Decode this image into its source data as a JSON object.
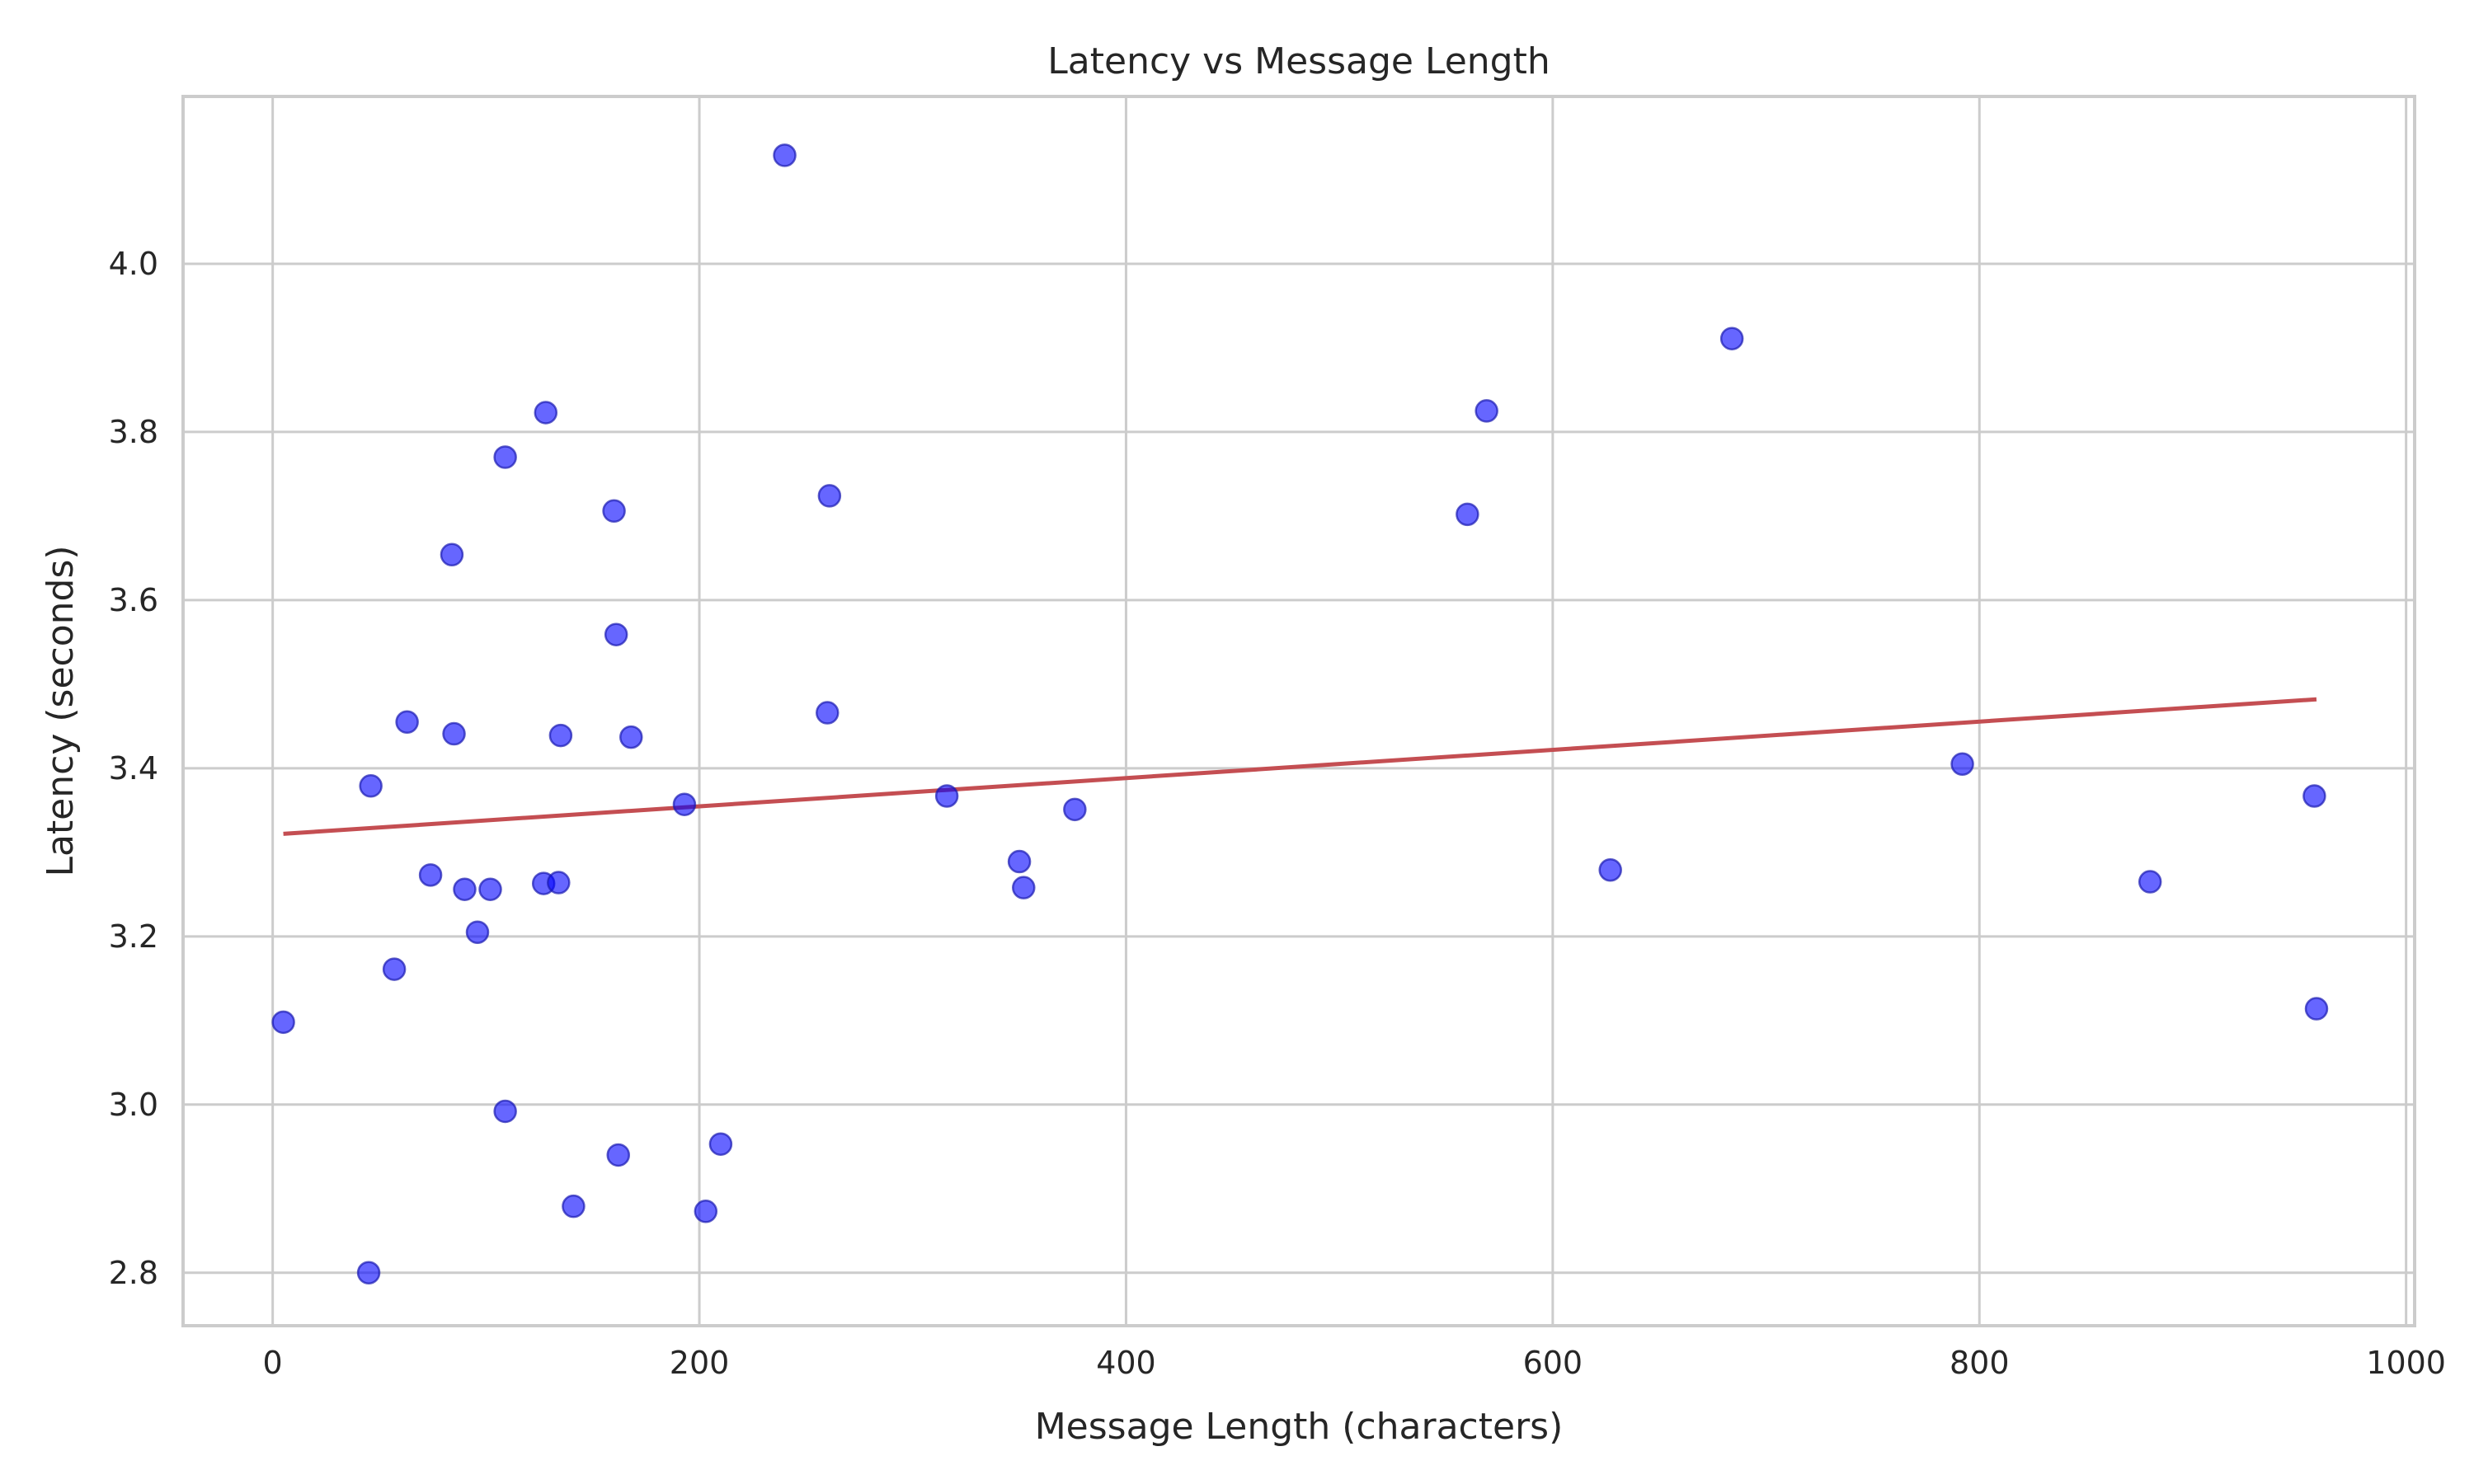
{
  "chart_data": {
    "type": "scatter",
    "title": "Latency vs Message Length",
    "xlabel": "Message Length (characters)",
    "ylabel": "Latency (seconds)",
    "xlim": [
      -42,
      1004
    ],
    "ylim": [
      2.737,
      4.199
    ],
    "x_ticks": [
      0,
      200,
      400,
      600,
      800,
      1000
    ],
    "x_tick_labels": [
      "0",
      "200",
      "400",
      "600",
      "800",
      "1000"
    ],
    "y_ticks": [
      2.8,
      3.0,
      3.2,
      3.4,
      3.6,
      3.8,
      4.0
    ],
    "y_tick_labels": [
      "2.8",
      "3.0",
      "3.2",
      "3.4",
      "3.6",
      "3.8",
      "4.0"
    ],
    "grid": true,
    "series": [
      {
        "kind": "points",
        "color": "#0000ff",
        "alpha": 0.6,
        "x": [
          5,
          45,
          46,
          57,
          63,
          74,
          84,
          85,
          90,
          96,
          102,
          109,
          109,
          127,
          128,
          134,
          135,
          141,
          160,
          161,
          162,
          168,
          193,
          203,
          210,
          240,
          260,
          261,
          316,
          350,
          352,
          376,
          560,
          569,
          627,
          684,
          792,
          880,
          957,
          958
        ],
        "y": [
          3.098,
          2.8,
          3.379,
          3.161,
          3.455,
          3.273,
          3.654,
          3.441,
          3.256,
          3.205,
          3.256,
          3.77,
          2.992,
          3.263,
          3.823,
          3.264,
          3.439,
          2.879,
          3.706,
          3.559,
          2.94,
          3.437,
          3.357,
          2.873,
          2.953,
          4.129,
          3.466,
          3.724,
          3.367,
          3.289,
          3.258,
          3.351,
          3.702,
          3.825,
          3.279,
          3.911,
          3.405,
          3.265,
          3.367,
          3.114
        ]
      },
      {
        "kind": "trend-line",
        "color": "#c44e52",
        "x": [
          5,
          958
        ],
        "y": [
          3.322,
          3.482
        ]
      }
    ]
  }
}
